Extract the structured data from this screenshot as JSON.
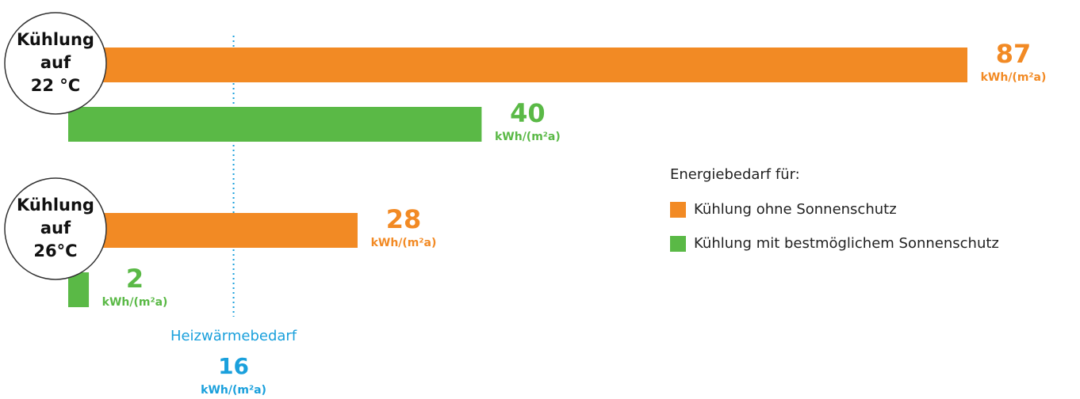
{
  "chart_data": {
    "type": "bar",
    "orientation": "horizontal",
    "categories": [
      [
        "Kühlung",
        "auf",
        "22 °C"
      ],
      [
        "Kühlung",
        "auf",
        "26°C"
      ]
    ],
    "unit": "kWh/(m²a)",
    "series": [
      {
        "name": "Kühlung ohne Sonnenschutz",
        "color": "#f28a24",
        "values": [
          87,
          28
        ]
      },
      {
        "name": "Kühlung mit bestmöglichem Sonnenschutz",
        "color": "#5ab946",
        "values": [
          40,
          2
        ]
      }
    ],
    "legend_title": "Energiebedarf für:",
    "reference_line": {
      "label": "Heizwärmebedarf",
      "value": 16,
      "color": "#1aa0dc"
    }
  }
}
